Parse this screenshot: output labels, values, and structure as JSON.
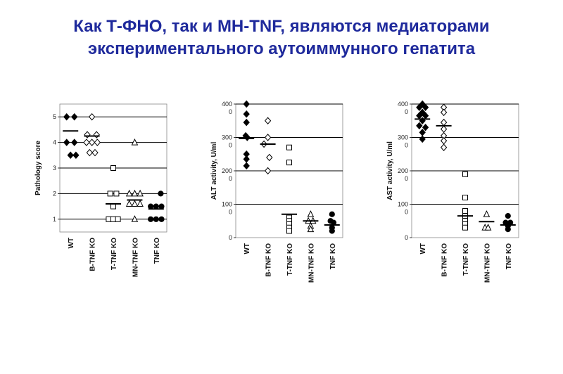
{
  "slide": {
    "title_line1": "Как Т-ФНО, так и МН-TNF, являются медиаторами",
    "title_line2": "экспериментального аутоиммунного гепатита"
  },
  "chart_data": [
    {
      "type": "scatter",
      "ylabel": "Pathology score",
      "categories": [
        "WT",
        "B-TNF KO",
        "T-TNF KO",
        "MN-TNF KO",
        "TNF KO"
      ],
      "ylim": [
        0.5,
        5.5
      ],
      "yticks": [
        1,
        2,
        3,
        4,
        5
      ],
      "ytick_labels": [
        "1",
        "2",
        "3",
        "4",
        "5"
      ],
      "ygrid": [
        1,
        2,
        3,
        4,
        5
      ],
      "groups": [
        {
          "category": "WT",
          "marker": "diamond",
          "filled": true,
          "mean": 4.45,
          "points": [
            [
              -0.25,
              5
            ],
            [
              0.25,
              5
            ],
            [
              -0.25,
              4
            ],
            [
              0.25,
              4
            ],
            [
              0,
              3.5
            ],
            [
              0.35,
              3.5
            ]
          ]
        },
        {
          "category": "B-TNF KO",
          "marker": "diamond",
          "filled": false,
          "mean": 4.25,
          "points": [
            [
              0,
              5
            ],
            [
              -0.3,
              4.3
            ],
            [
              0.3,
              4.3
            ],
            [
              -0.35,
              4
            ],
            [
              0,
              4
            ],
            [
              0.35,
              4
            ],
            [
              -0.15,
              3.6
            ],
            [
              0.2,
              3.6
            ]
          ]
        },
        {
          "category": "T-TNF KO",
          "marker": "square",
          "filled": false,
          "mean": 1.6,
          "points": [
            [
              0,
              3
            ],
            [
              -0.2,
              2
            ],
            [
              0.2,
              2
            ],
            [
              0,
              1.5
            ],
            [
              -0.3,
              1
            ],
            [
              0,
              1
            ],
            [
              0.3,
              1
            ]
          ]
        },
        {
          "category": "MN-TNF KO",
          "marker": "triangle",
          "filled": false,
          "mean": 1.75,
          "points": [
            [
              0,
              4
            ],
            [
              -0.35,
              2
            ],
            [
              0,
              2
            ],
            [
              0.35,
              2
            ],
            [
              -0.35,
              1.6
            ],
            [
              0,
              1.6
            ],
            [
              0.35,
              1.6
            ],
            [
              0,
              1
            ]
          ]
        },
        {
          "category": "TNF KO",
          "marker": "circle",
          "filled": true,
          "mean": 1.4,
          "points": [
            [
              0.3,
              2
            ],
            [
              -0.35,
              1.5
            ],
            [
              0,
              1.5
            ],
            [
              0.35,
              1.5
            ],
            [
              -0.35,
              1
            ],
            [
              0,
              1
            ],
            [
              0.35,
              1
            ]
          ]
        }
      ]
    },
    {
      "type": "scatter",
      "ylabel": "ALT activity, U/ml",
      "categories": [
        "WT",
        "B-TNF KO",
        "T-TNF KO",
        "MN-TNF KO",
        "TNF KO"
      ],
      "ylim": [
        0,
        400
      ],
      "yticks": [
        0,
        100,
        200,
        300,
        400
      ],
      "ytick_labels": [
        "0",
        "100\n0",
        "200\n0",
        "300\n0",
        "400\n0"
      ],
      "ygrid": [
        100,
        200,
        300,
        400
      ],
      "groups": [
        {
          "category": "WT",
          "marker": "diamond",
          "filled": true,
          "mean": 297,
          "points": [
            [
              0,
              400
            ],
            [
              0,
              370
            ],
            [
              0,
              345
            ],
            [
              -0.05,
              305
            ],
            [
              0.05,
              300
            ],
            [
              0,
              250
            ],
            [
              0,
              235
            ],
            [
              0,
              215
            ]
          ]
        },
        {
          "category": "B-TNF KO",
          "marker": "diamond",
          "filled": false,
          "mean": 280,
          "points": [
            [
              0,
              350
            ],
            [
              0,
              300
            ],
            [
              -0.25,
              280
            ],
            [
              0.1,
              240
            ],
            [
              0,
              200
            ]
          ]
        },
        {
          "category": "T-TNF KO",
          "marker": "square",
          "filled": false,
          "mean": 70,
          "points": [
            [
              0,
              270
            ],
            [
              0,
              225
            ],
            [
              0,
              60
            ],
            [
              0,
              50
            ],
            [
              0,
              40
            ],
            [
              0,
              30
            ],
            [
              0,
              20
            ]
          ]
        },
        {
          "category": "MN-TNF KO",
          "marker": "triangle",
          "filled": false,
          "mean": 50,
          "points": [
            [
              0,
              70
            ],
            [
              -0.15,
              50
            ],
            [
              0.15,
              50
            ],
            [
              0,
              35
            ],
            [
              0,
              25
            ]
          ]
        },
        {
          "category": "TNF KO",
          "marker": "circle",
          "filled": true,
          "mean": 38,
          "points": [
            [
              0,
              70
            ],
            [
              -0.1,
              50
            ],
            [
              0.1,
              45
            ],
            [
              0,
              30
            ],
            [
              0,
              20
            ]
          ]
        }
      ]
    },
    {
      "type": "scatter",
      "ylabel": "AST activity, U/ml",
      "categories": [
        "WT",
        "B-TNF KO",
        "T-TNF KO",
        "MN-TNF KO",
        "TNF KO"
      ],
      "ylim": [
        0,
        400
      ],
      "yticks": [
        0,
        100,
        200,
        300,
        400
      ],
      "ytick_labels": [
        "0",
        "100\n0",
        "200\n0",
        "300\n0",
        "400\n0"
      ],
      "ygrid": [
        100,
        200,
        300,
        400
      ],
      "groups": [
        {
          "category": "WT",
          "marker": "diamond",
          "filled": true,
          "mean": 355,
          "points": [
            [
              0,
              400
            ],
            [
              -0.2,
              390
            ],
            [
              0.2,
              390
            ],
            [
              0,
              375
            ],
            [
              -0.2,
              365
            ],
            [
              0.2,
              365
            ],
            [
              0,
              350
            ],
            [
              -0.2,
              335
            ],
            [
              0.2,
              330
            ],
            [
              0,
              315
            ],
            [
              0,
              295
            ]
          ]
        },
        {
          "category": "B-TNF KO",
          "marker": "diamond",
          "filled": false,
          "mean": 335,
          "points": [
            [
              0,
              390
            ],
            [
              0,
              375
            ],
            [
              0,
              345
            ],
            [
              0,
              325
            ],
            [
              0,
              305
            ],
            [
              0,
              290
            ],
            [
              0,
              270
            ]
          ]
        },
        {
          "category": "T-TNF KO",
          "marker": "square",
          "filled": false,
          "mean": 65,
          "points": [
            [
              0,
              190
            ],
            [
              0,
              120
            ],
            [
              0,
              80
            ],
            [
              0,
              65
            ],
            [
              0,
              50
            ],
            [
              0,
              40
            ],
            [
              0,
              30
            ]
          ]
        },
        {
          "category": "MN-TNF KO",
          "marker": "triangle",
          "filled": false,
          "mean": 48,
          "points": [
            [
              0,
              70
            ],
            [
              -0.1,
              30
            ],
            [
              0.1,
              30
            ]
          ]
        },
        {
          "category": "TNF KO",
          "marker": "circle",
          "filled": true,
          "mean": 38,
          "points": [
            [
              0,
              65
            ],
            [
              -0.15,
              45
            ],
            [
              0.15,
              45
            ],
            [
              0,
              35
            ],
            [
              0,
              25
            ]
          ]
        }
      ]
    }
  ]
}
